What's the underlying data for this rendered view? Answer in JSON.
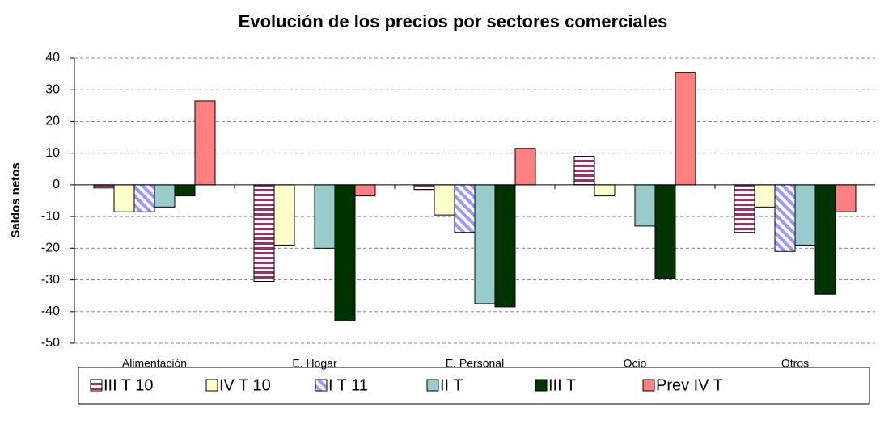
{
  "chart_data": {
    "type": "bar",
    "title": "Evolución de los precios por sectores comerciales",
    "y_label": "Saldos netos",
    "categories": [
      "Alimentación",
      "E. Hogar",
      "E. Personal",
      "Ocio",
      "Otros"
    ],
    "series": [
      {
        "name": "III T 10",
        "color": "#993366",
        "pattern": "horizontal-stripes",
        "values": [
          -1,
          -30.5,
          -1.5,
          9,
          -15
        ]
      },
      {
        "name": "IV T 10",
        "color": "#ffffcc",
        "pattern": "solid",
        "values": [
          -8.5,
          -19,
          -9.5,
          -3.5,
          -7
        ]
      },
      {
        "name": "I T 11",
        "color": "#9999ff",
        "pattern": "diagonal-stripes",
        "values": [
          -8.5,
          0,
          -15,
          0,
          -21
        ]
      },
      {
        "name": "II T",
        "color": "#99cccc",
        "pattern": "solid",
        "values": [
          -7,
          -20,
          -37.5,
          -13,
          -19
        ]
      },
      {
        "name": "III T",
        "color": "#003300",
        "pattern": "solid",
        "values": [
          -3.5,
          -43,
          -38.5,
          -29.5,
          -34.5
        ]
      },
      {
        "name": "Prev IV T",
        "color": "#ff8080",
        "pattern": "solid",
        "values": [
          26.5,
          -3.5,
          11.5,
          35.5,
          -8.5
        ]
      }
    ],
    "ylim": [
      -50,
      40
    ],
    "yticks": [
      -50,
      -40,
      -30,
      -20,
      -10,
      0,
      10,
      20,
      30,
      40
    ],
    "grid": true,
    "legend": "bottom"
  }
}
